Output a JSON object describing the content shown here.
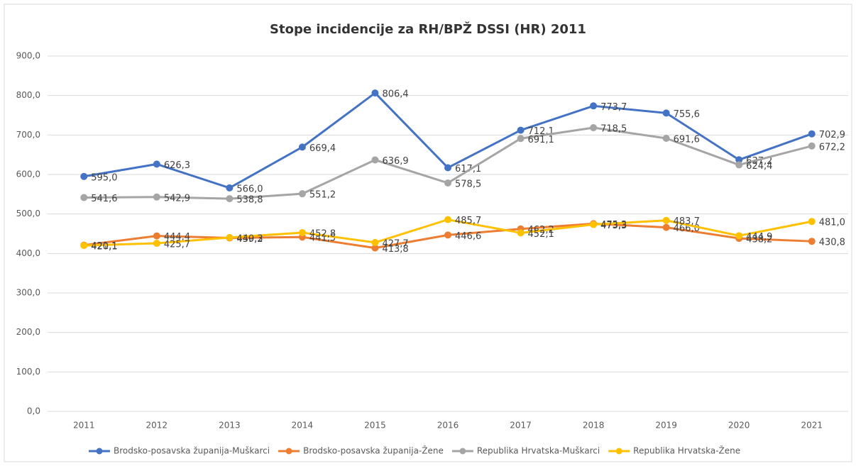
{
  "chart_data": {
    "type": "line",
    "title": "Stope incidencije za RH/BPŽ DSSI (HR) 2011",
    "categories": [
      "2011",
      "2012",
      "2013",
      "2014",
      "2015",
      "2016",
      "2017",
      "2018",
      "2019",
      "2020",
      "2021"
    ],
    "series": [
      {
        "name": "Brodsko-posavska županija-Muškarci",
        "color": "#4472c4",
        "values": [
          595.0,
          626.3,
          566.0,
          669.4,
          806.4,
          617.1,
          712.1,
          773.7,
          755.6,
          637.2,
          702.9
        ],
        "value_labels": [
          "595,0",
          "626,3",
          "566,0",
          "669,4",
          "806,4",
          "617,1",
          "712,1",
          "773,7",
          "755,6",
          "637,2",
          "702,9"
        ]
      },
      {
        "name": "Brodsko-posavska županija-Žene",
        "color": "#ed7d31",
        "values": [
          421.1,
          444.4,
          439.2,
          441.5,
          413.8,
          446.6,
          462.2,
          475.3,
          466.0,
          438.2,
          430.8
        ],
        "value_labels": [
          "421,1",
          "444,4",
          "439,2",
          "441,5",
          "413,8",
          "446,6",
          "462,2",
          "475,3",
          "466,0",
          "438,2",
          "430,8"
        ]
      },
      {
        "name": "Republika Hrvatska-Muškarci",
        "color": "#a5a5a5",
        "values": [
          541.6,
          542.9,
          538.8,
          551.2,
          636.9,
          578.5,
          691.1,
          718.5,
          691.6,
          624.4,
          672.2
        ],
        "value_labels": [
          "541,6",
          "542,9",
          "538,8",
          "551,2",
          "636,9",
          "578,5",
          "691,1",
          "718,5",
          "691,6",
          "624,4",
          "672,2"
        ]
      },
      {
        "name": "Republika Hrvatska-Žene",
        "color": "#ffc000",
        "values": [
          420.1,
          425.7,
          440.3,
          452.8,
          427.7,
          485.7,
          452.1,
          473.3,
          483.7,
          444.9,
          481.0
        ],
        "value_labels": [
          "420,1",
          "425,7",
          "440,3",
          "452,8",
          "427,7",
          "485,7",
          "452,1",
          "473,3",
          "483,7",
          "444,9",
          "481,0"
        ]
      }
    ],
    "ylim": [
      0,
      900
    ],
    "yticks": [
      {
        "value": 0,
        "label": "0,0"
      },
      {
        "value": 100,
        "label": "100,0"
      },
      {
        "value": 200,
        "label": "200,0"
      },
      {
        "value": 300,
        "label": "300,0"
      },
      {
        "value": 400,
        "label": "400,0"
      },
      {
        "value": 500,
        "label": "500,0"
      },
      {
        "value": 600,
        "label": "600,0"
      },
      {
        "value": 700,
        "label": "700,0"
      },
      {
        "value": 800,
        "label": "800,0"
      },
      {
        "value": 900,
        "label": "900,0"
      }
    ],
    "grid": true,
    "legend": "bottom"
  }
}
